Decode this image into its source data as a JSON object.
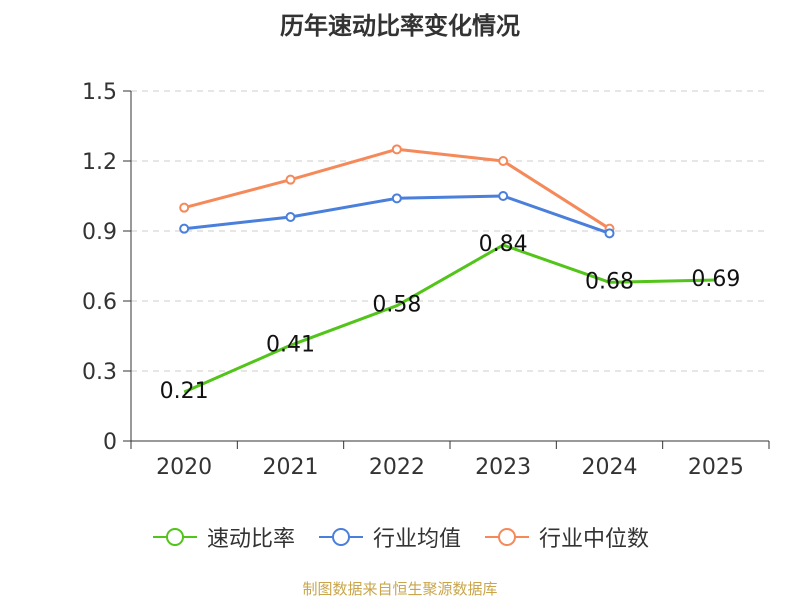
{
  "chart_data": {
    "type": "line",
    "title": "历年速动比率变化情况",
    "categories": [
      "2020",
      "2021",
      "2022",
      "2023",
      "2024",
      "2025"
    ],
    "ylim": [
      0,
      1.5
    ],
    "yticks": [
      "0",
      "0.3",
      "0.6",
      "0.9",
      "1.2",
      "1.5"
    ],
    "ytick_values": [
      0,
      0.3,
      0.6,
      0.9,
      1.2,
      1.5
    ],
    "grid": true,
    "legend_position": "bottom",
    "series": [
      {
        "name": "速动比率",
        "color": "#52c41a",
        "values": [
          0.21,
          0.41,
          0.58,
          0.84,
          0.68,
          0.69
        ],
        "labels": [
          "0.21",
          "0.41",
          "0.58",
          "0.84",
          "0.68",
          "0.69"
        ]
      },
      {
        "name": "行业均值",
        "color": "#4a7fdb",
        "values": [
          0.91,
          0.96,
          1.04,
          1.05,
          0.89,
          null
        ]
      },
      {
        "name": "行业中位数",
        "color": "#f5895a",
        "values": [
          1.0,
          1.12,
          1.25,
          1.2,
          0.91,
          null
        ]
      }
    ]
  },
  "footer": "制图数据来自恒生聚源数据库"
}
